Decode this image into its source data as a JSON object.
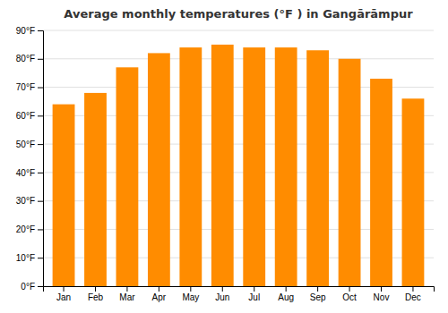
{
  "chart_data": {
    "type": "bar",
    "title": "Average monthly temperatures (°F ) in Gangārāmpur",
    "categories": [
      "Jan",
      "Feb",
      "Mar",
      "Apr",
      "May",
      "Jun",
      "Jul",
      "Aug",
      "Sep",
      "Oct",
      "Nov",
      "Dec"
    ],
    "values": [
      64,
      68,
      77,
      82,
      84,
      85,
      84,
      84,
      83,
      80,
      73,
      66
    ],
    "color": "#FF8C00",
    "ylim": [
      0,
      90
    ],
    "yticks": [
      {
        "value": 0,
        "label": "0°F"
      },
      {
        "value": 10,
        "label": "10°F"
      },
      {
        "value": 20,
        "label": "20°F"
      },
      {
        "value": 30,
        "label": "30°F"
      },
      {
        "value": 40,
        "label": "40°F"
      },
      {
        "value": 50,
        "label": "50°F"
      },
      {
        "value": 60,
        "label": "60°F"
      },
      {
        "value": 70,
        "label": "70°F"
      },
      {
        "value": 80,
        "label": "80°F"
      },
      {
        "value": 90,
        "label": "90°F"
      }
    ],
    "grid": true
  }
}
